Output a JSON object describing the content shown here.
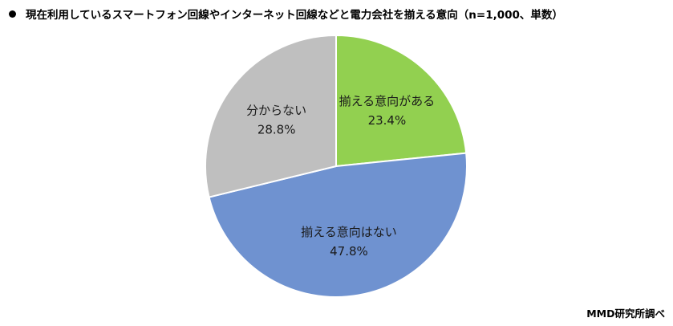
{
  "title": "現在利用しているスマートフォン回線やインターネット回線などと電力会社を揃える意向（n=1,000、単数）",
  "source": "MMD研究所調べ",
  "chart_data": {
    "type": "pie",
    "title": "現在利用しているスマートフォン回線やインターネット回線などと電力会社を揃える意向（n=1,000、単数）",
    "unit": "%",
    "start_angle_deg": 0,
    "direction": "clockwise",
    "slices": [
      {
        "label": "揃える意向がある",
        "value": 23.4,
        "value_label": "23.4%",
        "color": "#92d050"
      },
      {
        "label": "揃える意向はない",
        "value": 47.8,
        "value_label": "47.8%",
        "color": "#6f92d0"
      },
      {
        "label": "分からない",
        "value": 28.8,
        "value_label": "28.8%",
        "color": "#bfbfbf"
      }
    ]
  }
}
